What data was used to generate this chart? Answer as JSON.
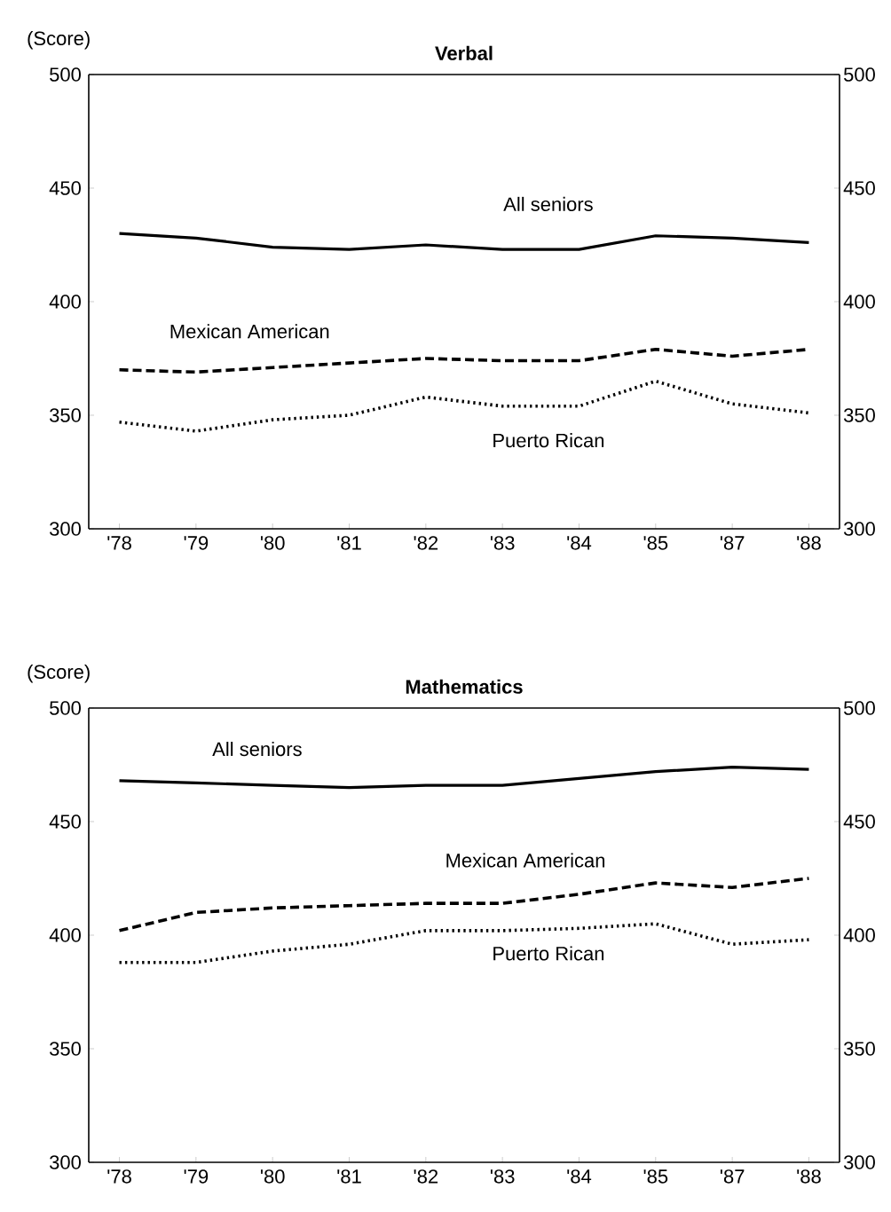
{
  "chart_data": [
    {
      "type": "line",
      "title": "Verbal",
      "ylabel": "(Score)",
      "categories": [
        "'78",
        "'79",
        "'80",
        "'81",
        "'82",
        "'83",
        "'84",
        "'85",
        "'87",
        "'88"
      ],
      "ylim": [
        300,
        500
      ],
      "yticks": [
        300,
        350,
        400,
        450,
        500
      ],
      "y2lim": [
        300,
        500
      ],
      "y2ticks": [
        300,
        350,
        400,
        450,
        500
      ],
      "grid": false,
      "legend": false,
      "marker": "none",
      "series": [
        {
          "name": "All seniors",
          "color": "#000000",
          "line_style": "solid",
          "values": [
            430,
            428,
            424,
            423,
            425,
            423,
            423,
            429,
            428,
            426
          ]
        },
        {
          "name": "Mexican American",
          "color": "#000000",
          "line_style": "dashed",
          "values": [
            370,
            369,
            371,
            373,
            375,
            374,
            374,
            379,
            376,
            379
          ]
        },
        {
          "name": "Puerto Rican",
          "color": "#000000",
          "line_style": "dotted",
          "values": [
            347,
            343,
            348,
            350,
            358,
            354,
            354,
            365,
            355,
            351
          ]
        }
      ]
    },
    {
      "type": "line",
      "title": "Mathematics",
      "ylabel": "(Score)",
      "categories": [
        "'78",
        "'79",
        "'80",
        "'81",
        "'82",
        "'83",
        "'84",
        "'85",
        "'87",
        "'88"
      ],
      "ylim": [
        300,
        500
      ],
      "yticks": [
        300,
        350,
        400,
        450,
        500
      ],
      "y2lim": [
        300,
        500
      ],
      "y2ticks": [
        300,
        350,
        400,
        450,
        500
      ],
      "grid": false,
      "legend": false,
      "marker": "none",
      "series": [
        {
          "name": "All seniors",
          "color": "#000000",
          "line_style": "solid",
          "values": [
            468,
            467,
            466,
            465,
            466,
            466,
            469,
            472,
            474,
            473
          ]
        },
        {
          "name": "Mexican American",
          "color": "#000000",
          "line_style": "dashed",
          "values": [
            402,
            410,
            412,
            413,
            414,
            414,
            418,
            423,
            421,
            425
          ]
        },
        {
          "name": "Puerto Rican",
          "color": "#000000",
          "line_style": "dotted",
          "values": [
            388,
            388,
            393,
            396,
            402,
            402,
            403,
            405,
            396,
            398
          ]
        }
      ]
    }
  ]
}
